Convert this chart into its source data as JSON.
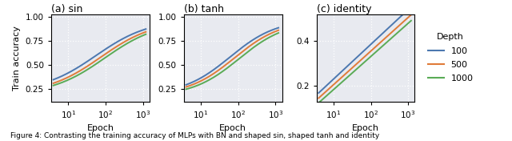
{
  "panels": [
    {
      "title": "(a) sin",
      "xlim": [
        3.5,
        1500
      ],
      "ylim": [
        0.12,
        1.03
      ],
      "yticks": [
        0.25,
        0.5,
        0.75,
        1.0
      ],
      "show_ylabel": true,
      "curves": {
        "steepness": [
          1.4,
          1.4,
          1.4
        ],
        "midpoint": [
          55,
          75,
          95
        ],
        "low": [
          0.22,
          0.2,
          0.19
        ],
        "high": [
          0.975,
          0.965,
          0.955
        ]
      }
    },
    {
      "title": "(b) tanh",
      "xlim": [
        3.5,
        1500
      ],
      "ylim": [
        0.12,
        1.03
      ],
      "yticks": [
        0.25,
        0.5,
        0.75,
        1.0
      ],
      "show_ylabel": false,
      "curves": {
        "steepness": [
          1.6,
          1.6,
          1.6
        ],
        "midpoint": [
          60,
          80,
          105
        ],
        "low": [
          0.19,
          0.185,
          0.175
        ],
        "high": [
          0.975,
          0.965,
          0.955
        ]
      }
    },
    {
      "title": "(c) identity",
      "xlim": [
        3.5,
        1500
      ],
      "ylim": [
        0.13,
        0.52
      ],
      "yticks": [
        0.2,
        0.4
      ],
      "show_ylabel": false,
      "curves": {
        "a": [
          0.075,
          0.055,
          0.035
        ],
        "b": [
          0.155,
          0.15,
          0.148
        ]
      }
    }
  ],
  "depths": [
    100,
    500,
    1000
  ],
  "colors": [
    "#4c78b0",
    "#e07b39",
    "#5aab56"
  ],
  "xlabel": "Epoch",
  "ylabel": "Train accuracy",
  "legend_title": "Depth",
  "background_color": "#e8eaf0",
  "caption": "Figure 4: Contrasting the training accuracy of MLPs with BN and shaped sin, shaped tanh and identity",
  "figsize": [
    6.4,
    1.76
  ],
  "dpi": 100
}
